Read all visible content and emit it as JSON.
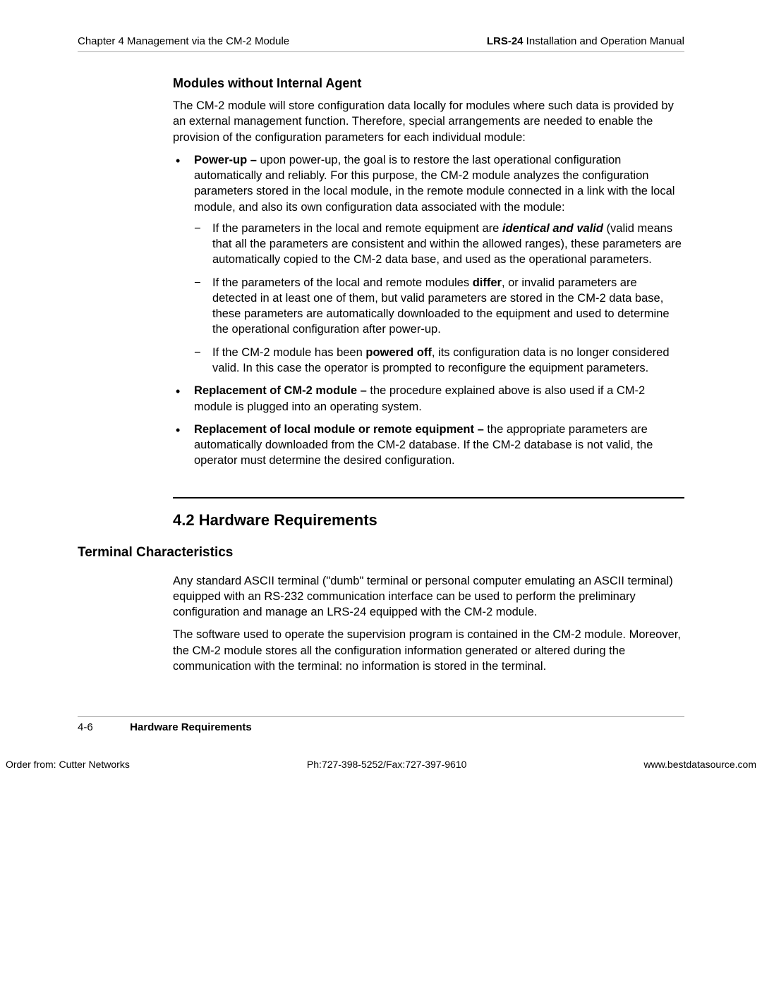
{
  "header": {
    "left": "Chapter 4  Management via the CM-2 Module",
    "right_bold": "LRS-24",
    "right_rest": " Installation and Operation Manual"
  },
  "subsection_title": "Modules without Internal Agent",
  "intro_paragraph": "The CM-2 module will store configuration data locally for modules where such data is provided by an external management function. Therefore, special arrangements are needed to enable the provision of the configuration parameters for each individual module:",
  "bullet1": {
    "lead_bold": "Power-up –",
    "lead_rest": " upon power-up, the goal is to restore the last operational configuration automatically and reliably. For this purpose, the CM-2 module analyzes the configuration parameters  stored in the local module, in the remote module connected in a link with the local module, and also its own configuration data associated with the module:",
    "dash1_pre": "If the parameters in the local and remote equipment are ",
    "dash1_bi": "identical and valid",
    "dash1_post": " (valid means that all the parameters are consistent and within the allowed ranges), these parameters are automatically copied to the CM-2 data base, and used as the operational parameters.",
    "dash2_pre": "If the parameters of the local and remote modules ",
    "dash2_b": "differ",
    "dash2_post": ", or invalid parameters are detected in at least one of them, but valid parameters are stored in the CM-2 data base, these parameters are automatically downloaded to the equipment and used to determine the operational configuration after power-up.",
    "dash3_pre": "If the CM-2 module has been ",
    "dash3_b": "powered off",
    "dash3_post": ", its configuration data is no longer considered valid. In this case the operator is prompted to reconfigure the equipment parameters."
  },
  "bullet2": {
    "lead_bold": "Replacement of CM-2 module –",
    "lead_rest": " the procedure explained above is also used if a CM-2 module is plugged into an operating system."
  },
  "bullet3": {
    "lead_bold": "Replacement of local module or remote equipment –",
    "lead_rest": " the appropriate parameters are automatically downloaded from the CM-2 database. If the CM-2 database is not valid, the operator must determine the desired configuration."
  },
  "section_number_title": "4.2  Hardware Requirements",
  "left_heading": "Terminal Characteristics",
  "tc_para1": "Any standard ASCII terminal (\"dumb\" terminal or personal computer emulating an ASCII terminal) equipped with an RS-232 communication interface can be used to perform the preliminary configuration and manage an LRS-24 equipped with the CM-2 module.",
  "tc_para2": "The software used to operate the supervision program is contained in the CM-2 module. Moreover, the CM-2 module stores all the configuration information generated or altered during the communication with the terminal: no information is stored in the terminal.",
  "footer": {
    "page_num": "4-6",
    "title": "Hardware Requirements"
  },
  "orderline": {
    "left": "Order from: Cutter Networks",
    "center": "Ph:727-398-5252/Fax:727-397-9610",
    "right": "www.bestdatasource.com"
  }
}
